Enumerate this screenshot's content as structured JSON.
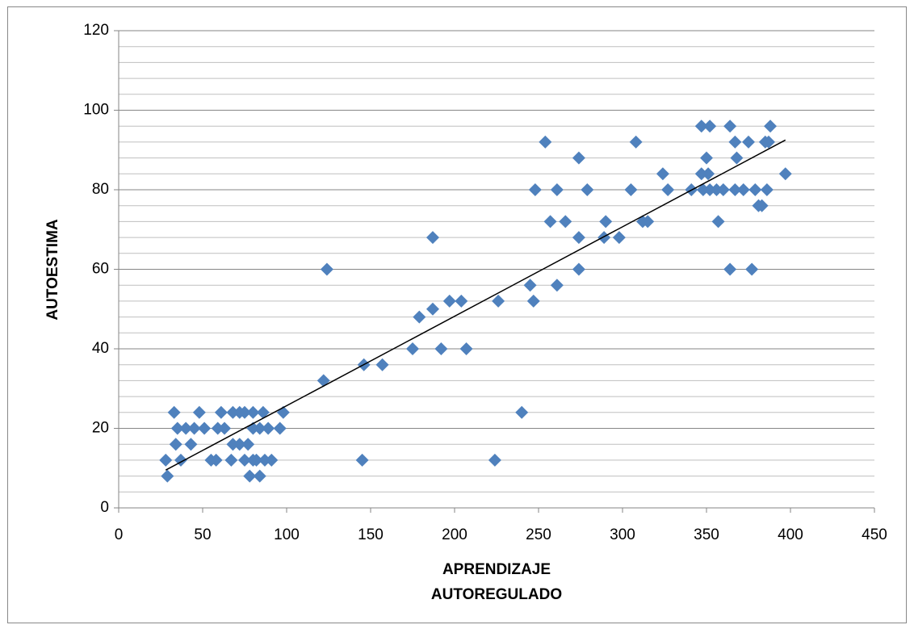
{
  "chart_data": {
    "type": "scatter",
    "ylabel": "AUTOESTIMA",
    "xlabel": [
      "APRENDIZAJE",
      "AUTOREGULADO"
    ],
    "xlim": [
      0,
      450
    ],
    "xticks": [
      0,
      50,
      100,
      150,
      200,
      250,
      300,
      350,
      400,
      450
    ],
    "ylim": [
      0,
      120
    ],
    "yticks": [
      0,
      20,
      40,
      60,
      80,
      100,
      120
    ],
    "grid": true,
    "minor_grid_step": 4,
    "series": [
      {
        "color": "#4f81bd",
        "x": [
          33,
          48,
          61,
          68,
          72,
          75,
          80,
          86,
          98,
          35,
          40,
          45,
          51,
          59,
          63,
          80,
          84,
          89,
          96,
          34,
          43,
          68,
          72,
          77,
          28,
          37,
          55,
          58,
          67,
          75,
          80,
          82,
          87,
          91,
          145,
          224,
          29,
          78,
          84,
          122,
          146,
          157,
          175,
          192,
          207,
          179,
          187,
          197,
          204,
          226,
          247,
          240,
          245,
          261,
          124,
          274,
          364,
          377,
          187,
          274,
          289,
          298,
          257,
          266,
          290,
          312,
          315,
          357,
          381,
          383,
          248,
          261,
          279,
          305,
          327,
          341,
          348,
          352,
          356,
          360,
          367,
          372,
          379,
          386,
          324,
          347,
          351,
          397,
          274,
          350,
          368,
          254,
          308,
          367,
          375,
          385,
          387,
          347,
          352,
          364,
          388
        ],
        "y": [
          24,
          24,
          24,
          24,
          24,
          24,
          24,
          24,
          24,
          20,
          20,
          20,
          20,
          20,
          20,
          20,
          20,
          20,
          20,
          16,
          16,
          16,
          16,
          16,
          12,
          12,
          12,
          12,
          12,
          12,
          12,
          12,
          12,
          12,
          12,
          12,
          8,
          8,
          8,
          32,
          36,
          36,
          40,
          40,
          40,
          48,
          50,
          52,
          52,
          52,
          52,
          24,
          56,
          56,
          60,
          60,
          60,
          60,
          68,
          68,
          68,
          68,
          72,
          72,
          72,
          72,
          72,
          72,
          76,
          76,
          80,
          80,
          80,
          80,
          80,
          80,
          80,
          80,
          80,
          80,
          80,
          80,
          80,
          80,
          84,
          84,
          84,
          84,
          88,
          88,
          88,
          92,
          92,
          92,
          92,
          92,
          92,
          96,
          96,
          96,
          96
        ]
      }
    ],
    "trendline": {
      "color": "#000000",
      "x": [
        28,
        397
      ],
      "y": [
        9.5,
        92.5
      ]
    }
  }
}
